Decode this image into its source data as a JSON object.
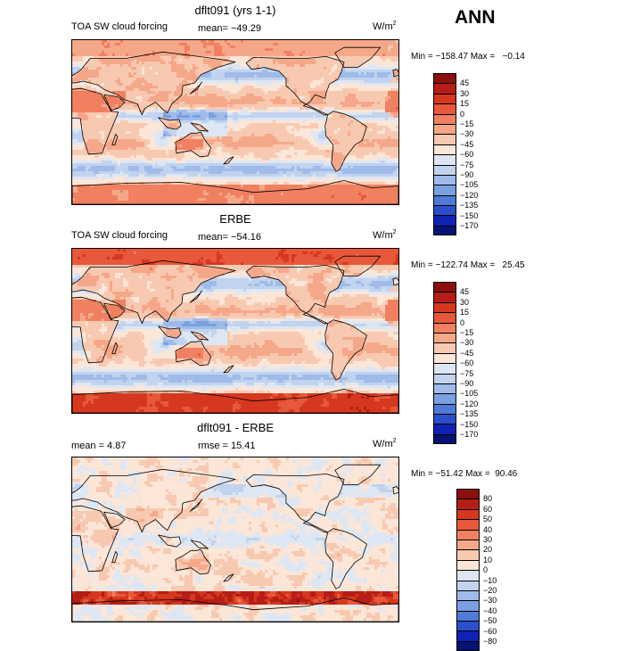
{
  "season": "ANN",
  "colors": {
    "bg": "#ffffff",
    "ocean_base": "#f7d2c0",
    "coast": "#000000"
  },
  "panels": [
    {
      "title": "dflt091 (yrs 1-1)",
      "left_label": "TOA SW cloud forcing",
      "stat1": "mean= −49.29",
      "stat2": "",
      "units": "W/m",
      "units_sup": "2",
      "minmax": "Min = −158.47 Max =   −0.14",
      "legend": {
        "labels": [
          "45",
          "30",
          "15",
          "0",
          "−15",
          "−30",
          "−45",
          "−60",
          "−75",
          "−90",
          "−105",
          "−120",
          "−135",
          "−150",
          "−170"
        ],
        "colors": [
          "#8b0f0c",
          "#b51e16",
          "#d6381f",
          "#e8583a",
          "#f08060",
          "#f5a889",
          "#f8c9b1",
          "#fbe6d8",
          "#dde7f4",
          "#c1d3ee",
          "#9fbbe9",
          "#7aa0e2",
          "#4f7ad8",
          "#2b4fcc",
          "#0f22b3",
          "#061375"
        ]
      },
      "map_style": "model"
    },
    {
      "title": "ERBE",
      "left_label": "TOA SW cloud forcing",
      "stat1": "mean= −54.16",
      "stat2": "",
      "units": "W/m",
      "units_sup": "2",
      "minmax": "Min = −122.74 Max =   25.45",
      "legend": {
        "labels": [
          "45",
          "30",
          "15",
          "0",
          "−15",
          "−30",
          "−45",
          "−60",
          "−75",
          "−90",
          "−105",
          "−120",
          "−135",
          "−150",
          "−170"
        ],
        "colors": [
          "#8b0f0c",
          "#b51e16",
          "#d6381f",
          "#e8583a",
          "#f08060",
          "#f5a889",
          "#f8c9b1",
          "#fbe6d8",
          "#dde7f4",
          "#c1d3ee",
          "#9fbbe9",
          "#7aa0e2",
          "#4f7ad8",
          "#2b4fcc",
          "#0f22b3",
          "#061375"
        ]
      },
      "map_style": "obs"
    },
    {
      "title": "dflt091 - ERBE",
      "left_label": "",
      "stat1": "mean =    4.87",
      "stat2": "rmse =   15.41",
      "units": "W/m",
      "units_sup": "2",
      "minmax": "Min = −51.42 Max =  90.46",
      "legend": {
        "labels": [
          "80",
          "60",
          "50",
          "40",
          "30",
          "20",
          "10",
          "0",
          "−10",
          "−20",
          "−30",
          "−40",
          "−50",
          "−60",
          "−80"
        ],
        "colors": [
          "#8b0f0c",
          "#b51e16",
          "#d6381f",
          "#e8583a",
          "#f08060",
          "#f5a889",
          "#f8c9b1",
          "#fbe6d8",
          "#dde7f4",
          "#c1d3ee",
          "#9fbbe9",
          "#7aa0e2",
          "#4f7ad8",
          "#2b4fcc",
          "#0f22b3",
          "#061375"
        ]
      },
      "map_style": "diff"
    }
  ]
}
